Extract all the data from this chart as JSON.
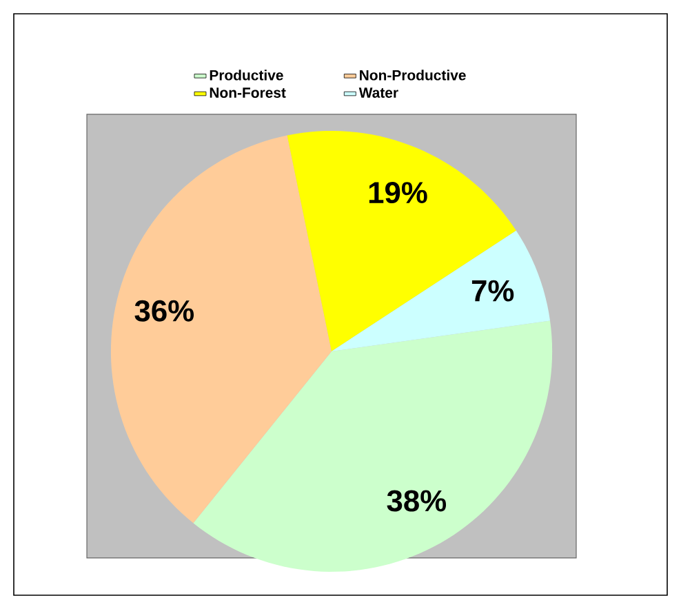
{
  "chart_data": {
    "type": "pie",
    "categories": [
      "Productive",
      "Non-Productive",
      "Non-Forest",
      "Water"
    ],
    "values": [
      38,
      36,
      19,
      7
    ],
    "value_labels": [
      "38%",
      "36%",
      "19%",
      "7%"
    ],
    "colors": [
      "#ccffcc",
      "#ffcc99",
      "#ffff00",
      "#ccffff"
    ],
    "legend": "top"
  }
}
